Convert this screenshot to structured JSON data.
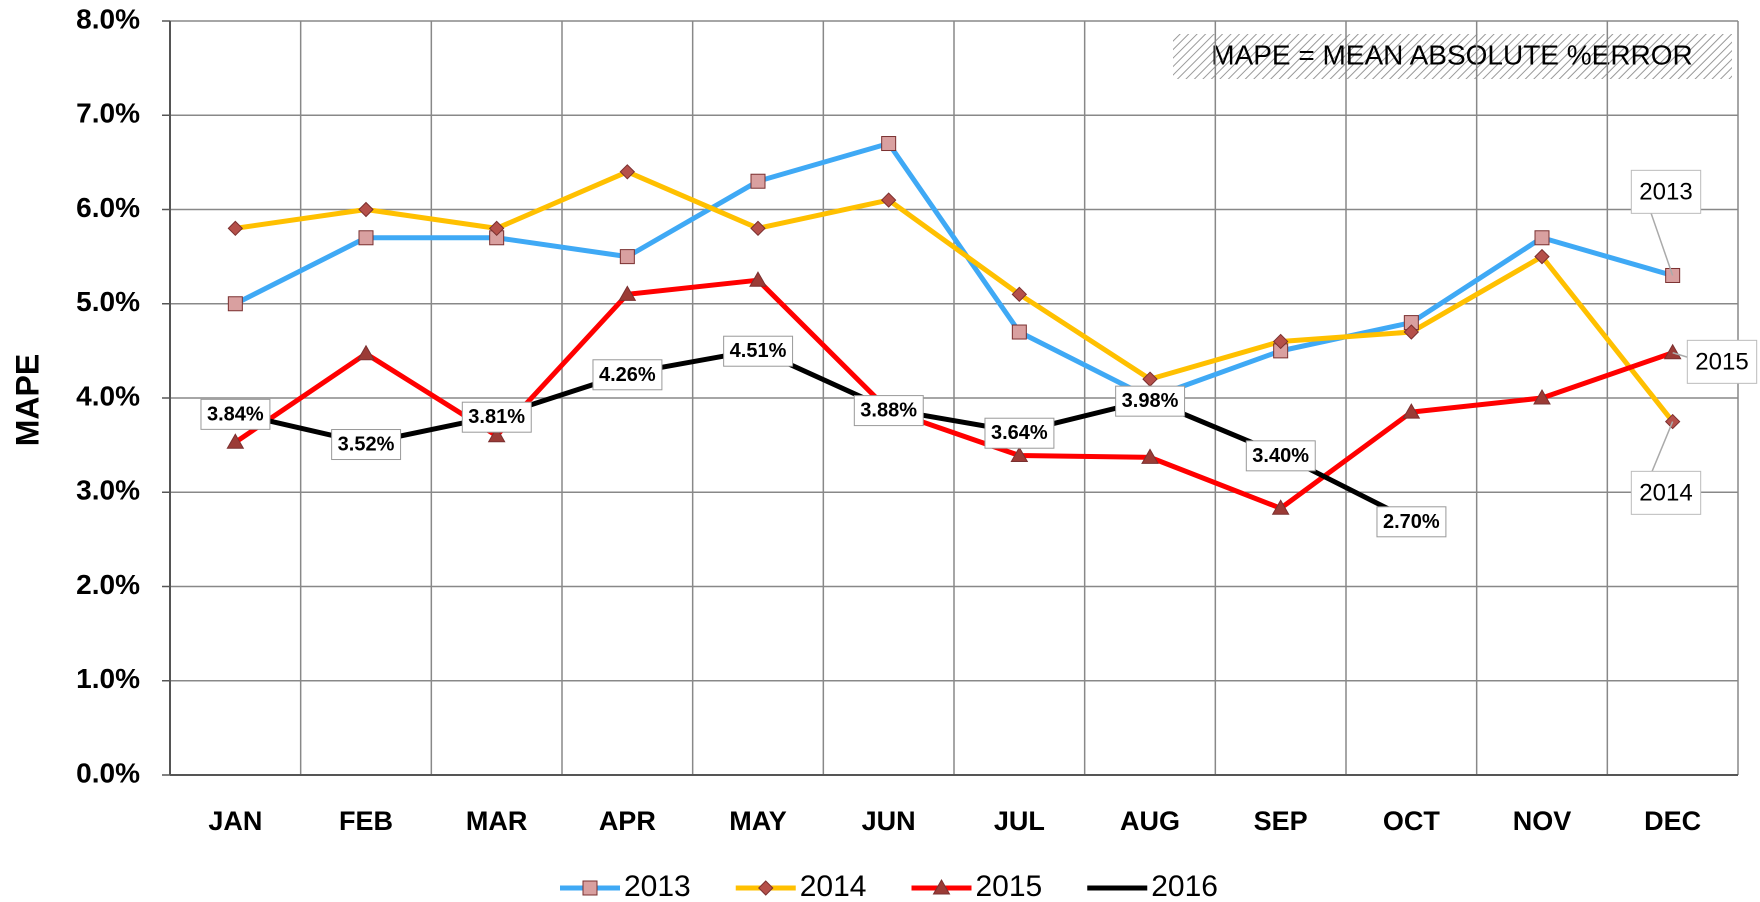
{
  "chart_data": {
    "type": "line",
    "y_label": "MAPE",
    "annotation": "MAPE = MEAN ABSOLUTE %ERROR",
    "categories": [
      "JAN",
      "FEB",
      "MAR",
      "APR",
      "MAY",
      "JUN",
      "JUL",
      "AUG",
      "SEP",
      "OCT",
      "NOV",
      "DEC"
    ],
    "ylim": [
      0,
      8
    ],
    "yticks": [
      {
        "value": 0,
        "label": "0.0%"
      },
      {
        "value": 1,
        "label": "1.0%"
      },
      {
        "value": 2,
        "label": "2.0%"
      },
      {
        "value": 3,
        "label": "3.0%"
      },
      {
        "value": 4,
        "label": "4.0%"
      },
      {
        "value": 5,
        "label": "5.0%"
      },
      {
        "value": 6,
        "label": "6.0%"
      },
      {
        "value": 7,
        "label": "7.0%"
      },
      {
        "value": 8,
        "label": "8.0%"
      }
    ],
    "grid": true,
    "legend": "bottom",
    "series": [
      {
        "name": "2013",
        "color": "#3fa9f5",
        "marker": "square",
        "marker_color": "#d9a0a0",
        "values": [
          5.0,
          5.7,
          5.7,
          5.5,
          6.3,
          6.7,
          4.7,
          4.0,
          4.5,
          4.8,
          5.7,
          5.3
        ]
      },
      {
        "name": "2014",
        "color": "#ffc000",
        "marker": "diamond",
        "marker_color": "#b5504a",
        "values": [
          5.8,
          6.0,
          5.8,
          6.4,
          5.8,
          6.1,
          5.1,
          4.2,
          4.6,
          4.7,
          5.5,
          3.75
        ]
      },
      {
        "name": "2015",
        "color": "#ff0000",
        "marker": "triangle",
        "marker_color": "#9b3b36",
        "values": [
          3.53,
          4.47,
          3.6,
          5.1,
          5.25,
          3.87,
          3.39,
          3.37,
          2.83,
          3.85,
          4.0,
          4.48
        ]
      },
      {
        "name": "2016",
        "color": "#000000",
        "marker": "none",
        "values": [
          3.84,
          3.52,
          3.81,
          4.26,
          4.51,
          3.88,
          3.64,
          3.98,
          3.4,
          2.7,
          null,
          null
        ],
        "value_labels": [
          "3.84%",
          "3.52%",
          "3.81%",
          "4.26%",
          "4.51%",
          "3.88%",
          "3.64%",
          "3.98%",
          "3.40%",
          "2.70%",
          null,
          null
        ]
      }
    ]
  }
}
